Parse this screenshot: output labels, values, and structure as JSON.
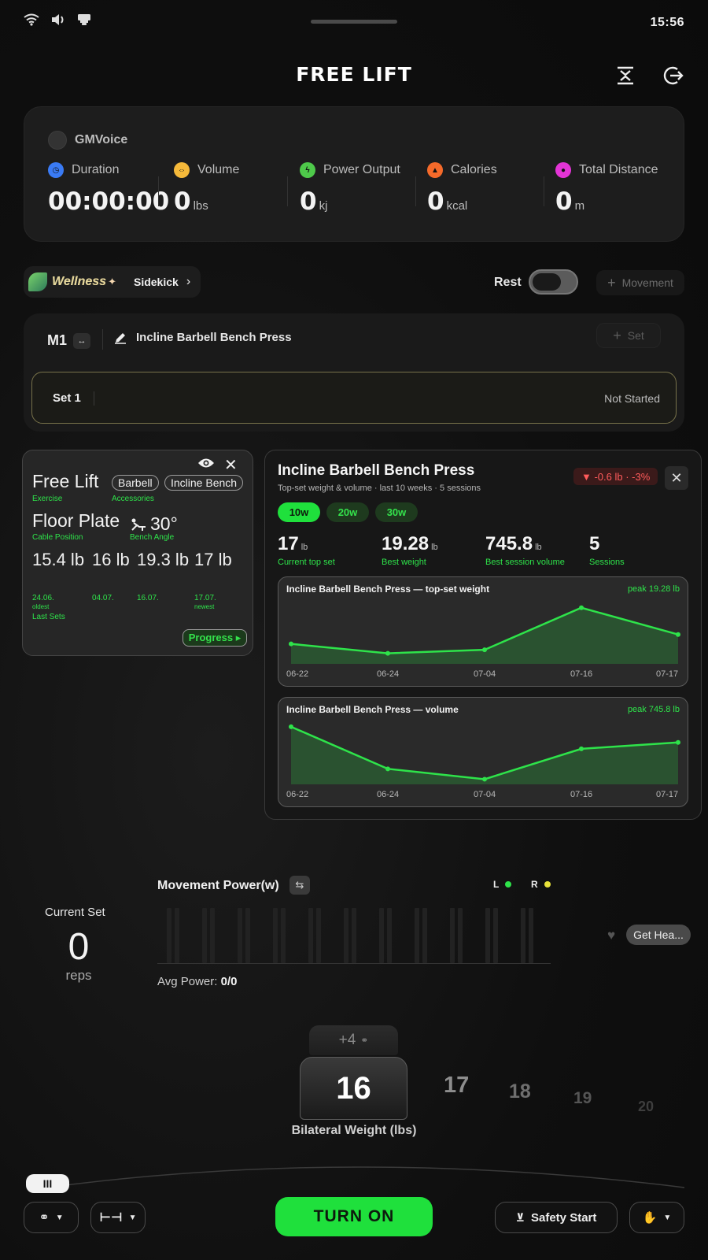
{
  "status_bar": {
    "time": "15:56",
    "icons": [
      "wifi-icon",
      "volume-icon",
      "notification-icon"
    ]
  },
  "header": {
    "title": "FREE LIFT",
    "icons": [
      "collapse-icon",
      "exit-icon"
    ]
  },
  "session": {
    "voice_label": "GMVoice",
    "stats": [
      {
        "label": "Duration",
        "value": "00:00:00",
        "unit": "",
        "icon": "clock-icon",
        "color": "#3a7bf5"
      },
      {
        "label": "Volume",
        "value": "0",
        "unit": "lbs",
        "icon": "dumbbell-icon",
        "color": "#f5b93a"
      },
      {
        "label": "Power Output",
        "value": "0",
        "unit": "kj",
        "icon": "lightning-icon",
        "color": "#4ec94a"
      },
      {
        "label": "Calories",
        "value": "0",
        "unit": "kcal",
        "icon": "flame-icon",
        "color": "#f56a2a"
      },
      {
        "label": "Total Distance",
        "value": "0",
        "unit": "m",
        "icon": "location-icon",
        "color": "#e334d6"
      }
    ]
  },
  "controls": {
    "wellness": "Wellness",
    "sidekick": "Sidekick",
    "rest_label": "Rest",
    "rest_on": false,
    "movement_button": "Movement"
  },
  "movement": {
    "id": "M1",
    "exercise": "Incline Barbell Bench Press",
    "set_button": "Set",
    "sets": [
      {
        "name": "Set 1",
        "status": "Not Started"
      }
    ]
  },
  "free_lift_panel": {
    "exercise_name": "Free Lift",
    "exercise_label": "Exercise",
    "accessories": [
      "Barbell",
      "Incline Bench"
    ],
    "accessories_label": "Accessories",
    "cable_position": "Floor Plate",
    "cable_position_label": "Cable Position",
    "bench_angle": "30°",
    "bench_angle_label": "Bench Angle",
    "last_sets": [
      {
        "weight": "15.4 lb",
        "date": "24.06.",
        "note": "oldest"
      },
      {
        "weight": "16 lb",
        "date": "04.07.",
        "note": ""
      },
      {
        "weight": "19.3 lb",
        "date": "16.07.",
        "note": ""
      },
      {
        "weight": "17 lb",
        "date": "17.07.",
        "note": "newest"
      }
    ],
    "last_sets_label": "Last Sets",
    "progress_button": "Progress ▸"
  },
  "history_panel": {
    "title": "Incline Barbell Bench Press",
    "subtitle": "Top-set weight & volume · last 10 weeks · 5 sessions",
    "delta": "▼ -0.6 lb · -3%",
    "ranges": [
      "10w",
      "20w",
      "30w"
    ],
    "active_range": "10w",
    "kpis": [
      {
        "value": "17",
        "unit": "lb",
        "label": "Current top set"
      },
      {
        "value": "19.28",
        "unit": "lb",
        "label": "Best weight"
      },
      {
        "value": "745.8",
        "unit": "lb",
        "label": "Best session volume"
      },
      {
        "value": "5",
        "unit": "",
        "label": "Sessions"
      }
    ]
  },
  "chart_data": [
    {
      "type": "area",
      "title": "Incline Barbell Bench Press — top-set weight",
      "annotation": "peak 19.28 lb",
      "x": [
        "06-22",
        "06-24",
        "07-04",
        "07-16",
        "07-17"
      ],
      "values": [
        16.2,
        15.4,
        15.7,
        19.28,
        17.0
      ],
      "ylim": [
        14.5,
        20
      ],
      "color": "#2ee34a"
    },
    {
      "type": "area",
      "title": "Incline Barbell Bench Press — volume",
      "annotation": "peak 745.8 lb",
      "x": [
        "06-22",
        "06-24",
        "07-04",
        "07-16",
        "07-17"
      ],
      "values": [
        745.8,
        420,
        340,
        575,
        625
      ],
      "ylim": [
        300,
        800
      ],
      "color": "#2ee34a"
    }
  ],
  "power": {
    "current_set_label": "Current Set",
    "reps_value": "0",
    "reps_label": "reps",
    "title": "Movement Power(w)",
    "left_label": "L",
    "right_label": "R",
    "left_color": "#2ee34a",
    "right_color": "#e8e23a",
    "avg_label": "Avg Power:",
    "avg_value": "0/0",
    "get_health": "Get Hea..."
  },
  "weight_selector": {
    "increment": "+4",
    "selected": "16",
    "options": [
      "17",
      "18",
      "19",
      "20"
    ],
    "label": "Bilateral Weight (lbs)"
  },
  "bottom_bar": {
    "handle": "III",
    "turn_on": "TURN ON",
    "safety_start": "Safety Start"
  }
}
